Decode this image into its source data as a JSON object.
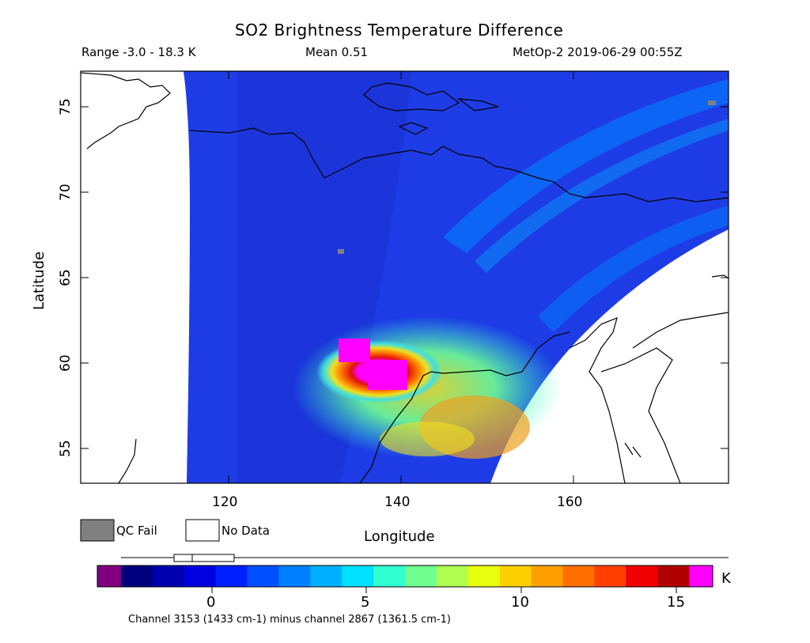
{
  "title": "SO2 Brightness Temperature Difference",
  "range_text": "Range -3.0 - 18.3 K",
  "mean_text": "Mean 0.51",
  "satellite_time": "MetOp-2 2019-06-29 00:55Z",
  "axes": {
    "x_label": "Longitude",
    "y_label": "Latitude",
    "x_ticks": [
      "120",
      "140",
      "160"
    ],
    "y_ticks": [
      "75",
      "70",
      "65",
      "60",
      "55"
    ]
  },
  "legend": {
    "qc_fail": "QC Fail",
    "no_data": "No Data",
    "qc_fail_color": "#808080",
    "no_data_color": "#ffffff"
  },
  "colorbar": {
    "ticks": [
      "0",
      "5",
      "10",
      "15"
    ],
    "unit": "K",
    "under_color": "#800080",
    "over_color": "#ff00ff",
    "colors": [
      "#00007f",
      "#0000b0",
      "#0000e0",
      "#0020ff",
      "#0050ff",
      "#0080ff",
      "#00b0ff",
      "#00e0ff",
      "#30ffd0",
      "#70ff90",
      "#b0ff50",
      "#e8ff10",
      "#ffd000",
      "#ffa000",
      "#ff7000",
      "#ff4000",
      "#f00000",
      "#b00000"
    ]
  },
  "caption": "Channel 3153 (1433 cm-1) minus channel 2867 (1361.5 cm-1)",
  "colors": {
    "background_field": "#1e3ce6",
    "plume_core": "#ff00ff",
    "plume_red": "#e01010",
    "plume_yellow": "#f0e020",
    "plume_cyan": "#40e0e0"
  }
}
